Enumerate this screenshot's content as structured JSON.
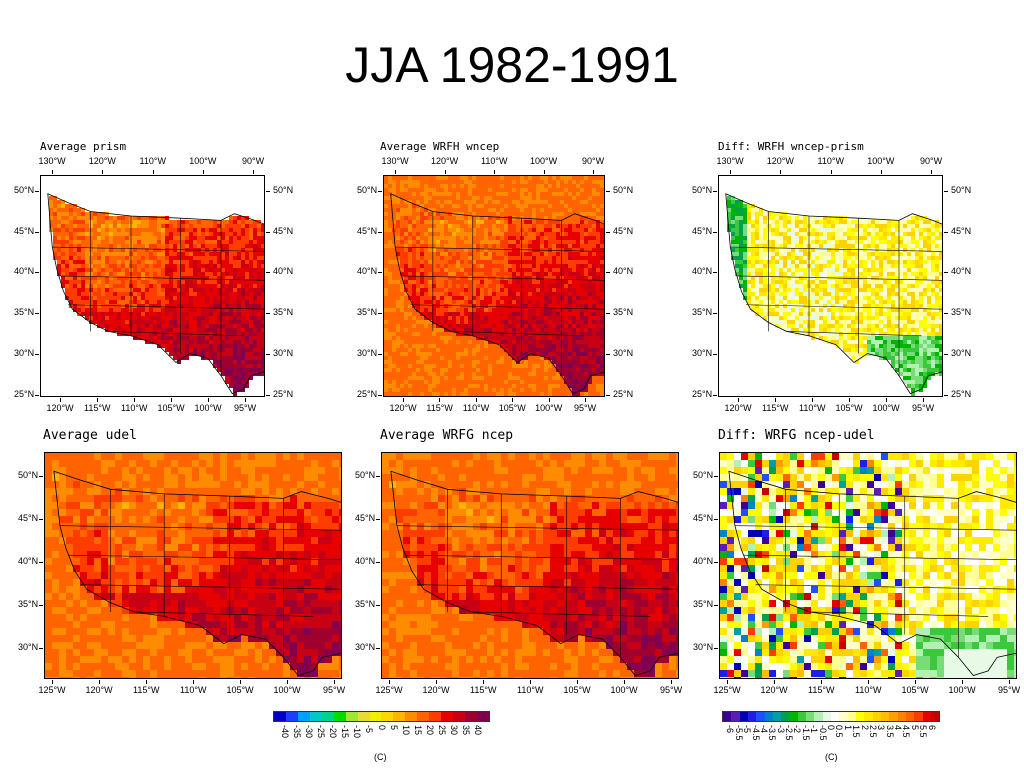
{
  "slide": {
    "title": "JJA 1982-1991"
  },
  "chart_data": [
    {
      "type": "heatmap",
      "title": "Average prism",
      "grid_style": "fine",
      "colormap": "temperature",
      "top_lon_labels": [
        "130°W",
        "120°W",
        "110°W",
        "100°W",
        "90°W"
      ],
      "bottom_lon_labels": [
        "120°W",
        "115°W",
        "110°W",
        "105°W",
        "100°W",
        "95°W"
      ],
      "lat_labels": [
        "50°N",
        "45°N",
        "40°N",
        "35°N",
        "30°N",
        "25°N"
      ],
      "lat_labels_right": [
        "50°N",
        "45°N",
        "40°N",
        "35°N",
        "30°N",
        "25°N"
      ],
      "domain": "conus_land"
    },
    {
      "type": "heatmap",
      "title": "Average WRFH wncep",
      "grid_style": "fine",
      "colormap": "temperature",
      "top_lon_labels": [
        "130°W",
        "120°W",
        "110°W",
        "100°W",
        "90°W"
      ],
      "bottom_lon_labels": [
        "120°W",
        "115°W",
        "110°W",
        "105°W",
        "100°W",
        "95°W"
      ],
      "lat_labels": [
        "50°N",
        "45°N",
        "40°N",
        "35°N",
        "30°N",
        "25°N"
      ],
      "lat_labels_right": [
        "50°N",
        "45°N",
        "40°N",
        "35°N",
        "30°N",
        "25°N"
      ],
      "domain": "full"
    },
    {
      "type": "heatmap",
      "title": "Diff: WRFH wncep-prism",
      "grid_style": "fine",
      "colormap": "difference",
      "top_lon_labels": [
        "130°W",
        "120°W",
        "110°W",
        "100°W",
        "90°W"
      ],
      "bottom_lon_labels": [
        "120°W",
        "115°W",
        "110°W",
        "105°W",
        "100°W",
        "95°W"
      ],
      "lat_labels": [
        "50°N",
        "45°N",
        "40°N",
        "35°N",
        "30°N",
        "25°N"
      ],
      "lat_labels_right": [
        "50°N",
        "45°N",
        "40°N",
        "35°N",
        "30°N",
        "25°N"
      ],
      "domain": "conus_land"
    },
    {
      "type": "heatmap",
      "title": "Average udel",
      "grid_style": "coarse",
      "colormap": "temperature",
      "bottom_lon_labels": [
        "125°W",
        "120°W",
        "115°W",
        "110°W",
        "105°W",
        "100°W",
        "95°W"
      ],
      "lat_labels": [
        "50°N",
        "45°N",
        "40°N",
        "35°N",
        "30°N"
      ],
      "domain": "full"
    },
    {
      "type": "heatmap",
      "title": "Average WRFG ncep",
      "grid_style": "coarse",
      "colormap": "temperature",
      "bottom_lon_labels": [
        "125°W",
        "120°W",
        "115°W",
        "110°W",
        "105°W",
        "100°W",
        "95°W"
      ],
      "lat_labels": [
        "50°N",
        "45°N",
        "40°N",
        "35°N",
        "30°N"
      ],
      "domain": "full"
    },
    {
      "type": "heatmap",
      "title": "Diff: WRFG ncep-udel",
      "grid_style": "coarse",
      "colormap": "difference",
      "bottom_lon_labels": [
        "125°W",
        "120°W",
        "115°W",
        "110°W",
        "105°W",
        "100°W",
        "95°W"
      ],
      "lat_labels": [
        "50°N",
        "45°N",
        "40°N",
        "35°N",
        "30°N"
      ],
      "domain": "full"
    }
  ],
  "colorbars": {
    "temperature": {
      "labels": [
        "-40",
        "-35",
        "-30",
        "-25",
        "-20",
        "-15",
        "-10",
        "-5",
        "0",
        "5",
        "10",
        "15",
        "20",
        "25",
        "30",
        "35",
        "40"
      ],
      "colors": [
        "#0000c8",
        "#1e3cff",
        "#00a0ff",
        "#00c8c8",
        "#00d28c",
        "#00dc00",
        "#a0e632",
        "#e6dc32",
        "#f0f000",
        "#ffd700",
        "#ffb400",
        "#ff8c00",
        "#ff6400",
        "#ff3c00",
        "#e60000",
        "#c80014",
        "#a0002d",
        "#820050"
      ],
      "caption": "(C)"
    },
    "difference": {
      "labels": [
        "-6",
        "-5.5",
        "-5",
        "-4.5",
        "-4",
        "-3.5",
        "-3",
        "-2.5",
        "-2",
        "-1.5",
        "-1",
        "-0.5",
        "0",
        "0.5",
        "1",
        "1.5",
        "2",
        "2.5",
        "3",
        "3.5",
        "4",
        "4.5",
        "5",
        "5.5",
        "6"
      ],
      "colors": [
        "#3c0096",
        "#5a1eb4",
        "#0000b4",
        "#1e1ee6",
        "#1e50ff",
        "#0082c8",
        "#00a0a0",
        "#00a050",
        "#00b400",
        "#3cc83c",
        "#78dc78",
        "#b4f0b4",
        "#e6fae6",
        "#ffffff",
        "#ffffc8",
        "#ffff96",
        "#ffff00",
        "#ffeb00",
        "#ffd200",
        "#ffbe00",
        "#ffa000",
        "#ff8200",
        "#ff6400",
        "#ff3c00",
        "#e60000",
        "#c80000"
      ],
      "caption": "(C)"
    }
  }
}
